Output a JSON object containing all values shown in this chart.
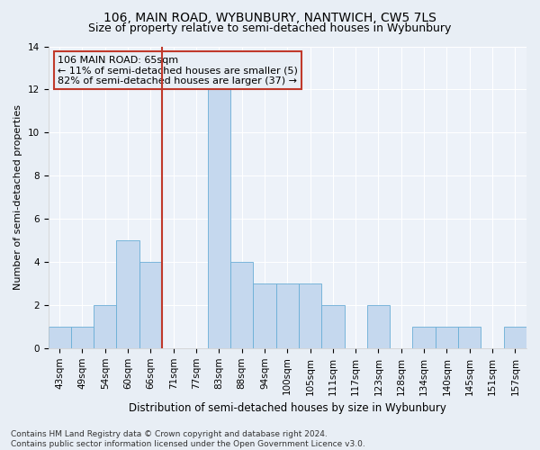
{
  "title": "106, MAIN ROAD, WYBUNBURY, NANTWICH, CW5 7LS",
  "subtitle": "Size of property relative to semi-detached houses in Wybunbury",
  "xlabel": "Distribution of semi-detached houses by size in Wybunbury",
  "ylabel": "Number of semi-detached properties",
  "bin_labels": [
    "43sqm",
    "49sqm",
    "54sqm",
    "60sqm",
    "66sqm",
    "71sqm",
    "77sqm",
    "83sqm",
    "88sqm",
    "94sqm",
    "100sqm",
    "105sqm",
    "111sqm",
    "117sqm",
    "123sqm",
    "128sqm",
    "134sqm",
    "140sqm",
    "145sqm",
    "151sqm",
    "157sqm"
  ],
  "bar_values": [
    1,
    1,
    2,
    5,
    4,
    0,
    0,
    12,
    4,
    3,
    3,
    3,
    2,
    0,
    2,
    0,
    1,
    1,
    1,
    0,
    1
  ],
  "bar_color": "#c5d8ee",
  "bar_edgecolor": "#6aaed6",
  "vline_bin_index": 4,
  "vline_color": "#c0392b",
  "annotation_text": "106 MAIN ROAD: 65sqm\n← 11% of semi-detached houses are smaller (5)\n82% of semi-detached houses are larger (37) →",
  "annotation_box_edgecolor": "#c0392b",
  "ylim": [
    0,
    14
  ],
  "yticks": [
    0,
    2,
    4,
    6,
    8,
    10,
    12,
    14
  ],
  "bg_color": "#e8eef5",
  "plot_bg_color": "#edf2f9",
  "footer": "Contains HM Land Registry data © Crown copyright and database right 2024.\nContains public sector information licensed under the Open Government Licence v3.0.",
  "title_fontsize": 10,
  "subtitle_fontsize": 9,
  "xlabel_fontsize": 8.5,
  "ylabel_fontsize": 8,
  "tick_fontsize": 7.5,
  "footer_fontsize": 6.5,
  "annot_fontsize": 8
}
